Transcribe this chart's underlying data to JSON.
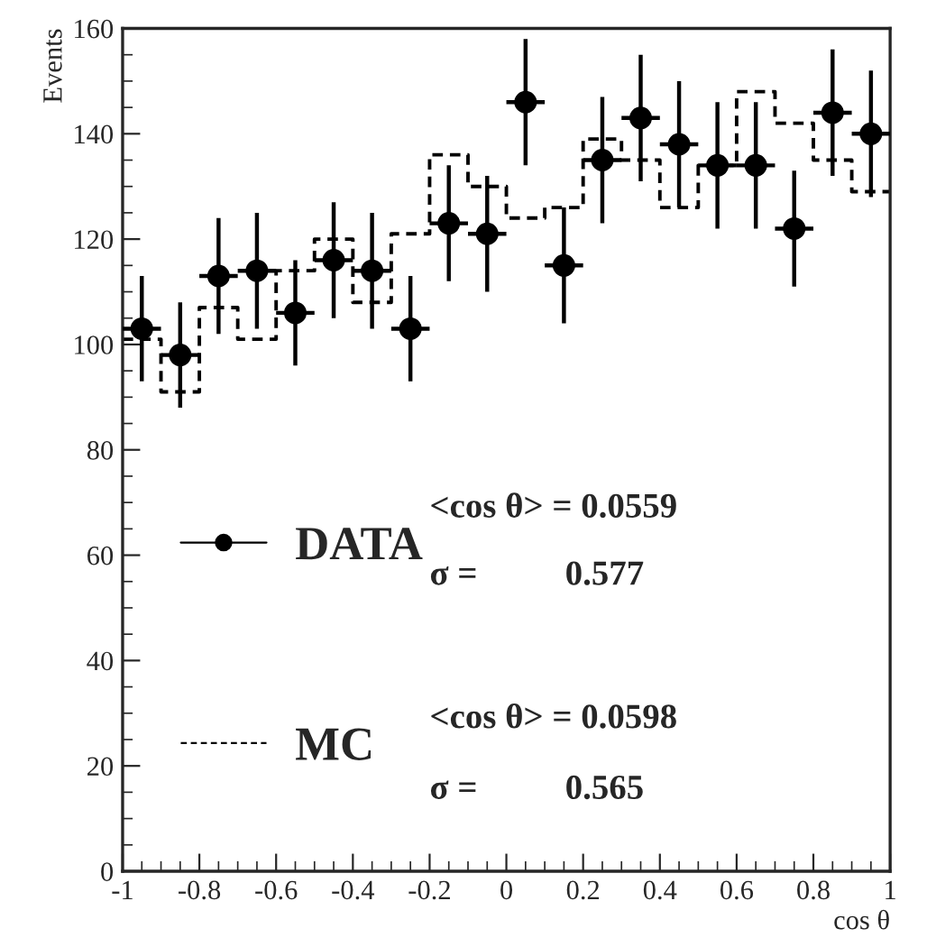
{
  "chart_data": {
    "type": "scatter",
    "xlabel": "cos θ",
    "ylabel": "Events",
    "xlim": [
      -1,
      1
    ],
    "ylim": [
      0,
      160
    ],
    "xticks": [
      {
        "value": -1,
        "label": "-1"
      },
      -0.8,
      -0.6,
      -0.4,
      -0.2,
      0,
      0.2,
      0.4,
      0.6,
      0.8,
      1
    ],
    "yticks": [
      0,
      20,
      40,
      60,
      80,
      100,
      120,
      140,
      160
    ],
    "grid": false,
    "legend": "left",
    "series": [
      {
        "name": "DATA",
        "color": "#000000",
        "marker": "circle",
        "x": [
          -0.95,
          -0.85,
          -0.75,
          -0.65,
          -0.55,
          -0.45,
          -0.35,
          -0.25,
          -0.15,
          -0.05,
          0.05,
          0.15,
          0.25,
          0.35,
          0.45,
          0.55,
          0.65,
          0.75,
          0.85,
          0.95
        ],
        "values": [
          103,
          98,
          113,
          114,
          106,
          116,
          114,
          103,
          123,
          121,
          146,
          115,
          135,
          143,
          138,
          134,
          134,
          122,
          144,
          140
        ],
        "errors": [
          10,
          10,
          11,
          11,
          10,
          11,
          11,
          10,
          11,
          11,
          12,
          11,
          12,
          12,
          12,
          12,
          12,
          11,
          12,
          12
        ],
        "xerrors": [
          0.05,
          0.05,
          0.05,
          0.05,
          0.05,
          0.05,
          0.05,
          0.05,
          0.05,
          0.05,
          0.05,
          0.05,
          0.05,
          0.05,
          0.05,
          0.05,
          0.05,
          0.05,
          0.05,
          0.05
        ]
      },
      {
        "name": "MC",
        "type": "histogram",
        "color": "#000000",
        "line_style": "dashed",
        "bins": [
          -1,
          -0.9,
          -0.8,
          -0.7,
          -0.6,
          -0.5,
          -0.4,
          -0.3,
          -0.2,
          -0.1,
          0,
          0.1,
          0.2,
          0.3,
          0.4,
          0.5,
          0.6,
          0.7,
          0.8,
          0.9,
          1
        ],
        "values": [
          101,
          91,
          107,
          101,
          114,
          120,
          108,
          121,
          136,
          130,
          124,
          126,
          139,
          135,
          126,
          134,
          148,
          142,
          135,
          129
        ]
      }
    ],
    "annotations": [
      "<cos θ> = 0.0559",
      "σ =          0.577",
      "<cos θ> = 0.0598",
      "σ =          0.565"
    ]
  }
}
